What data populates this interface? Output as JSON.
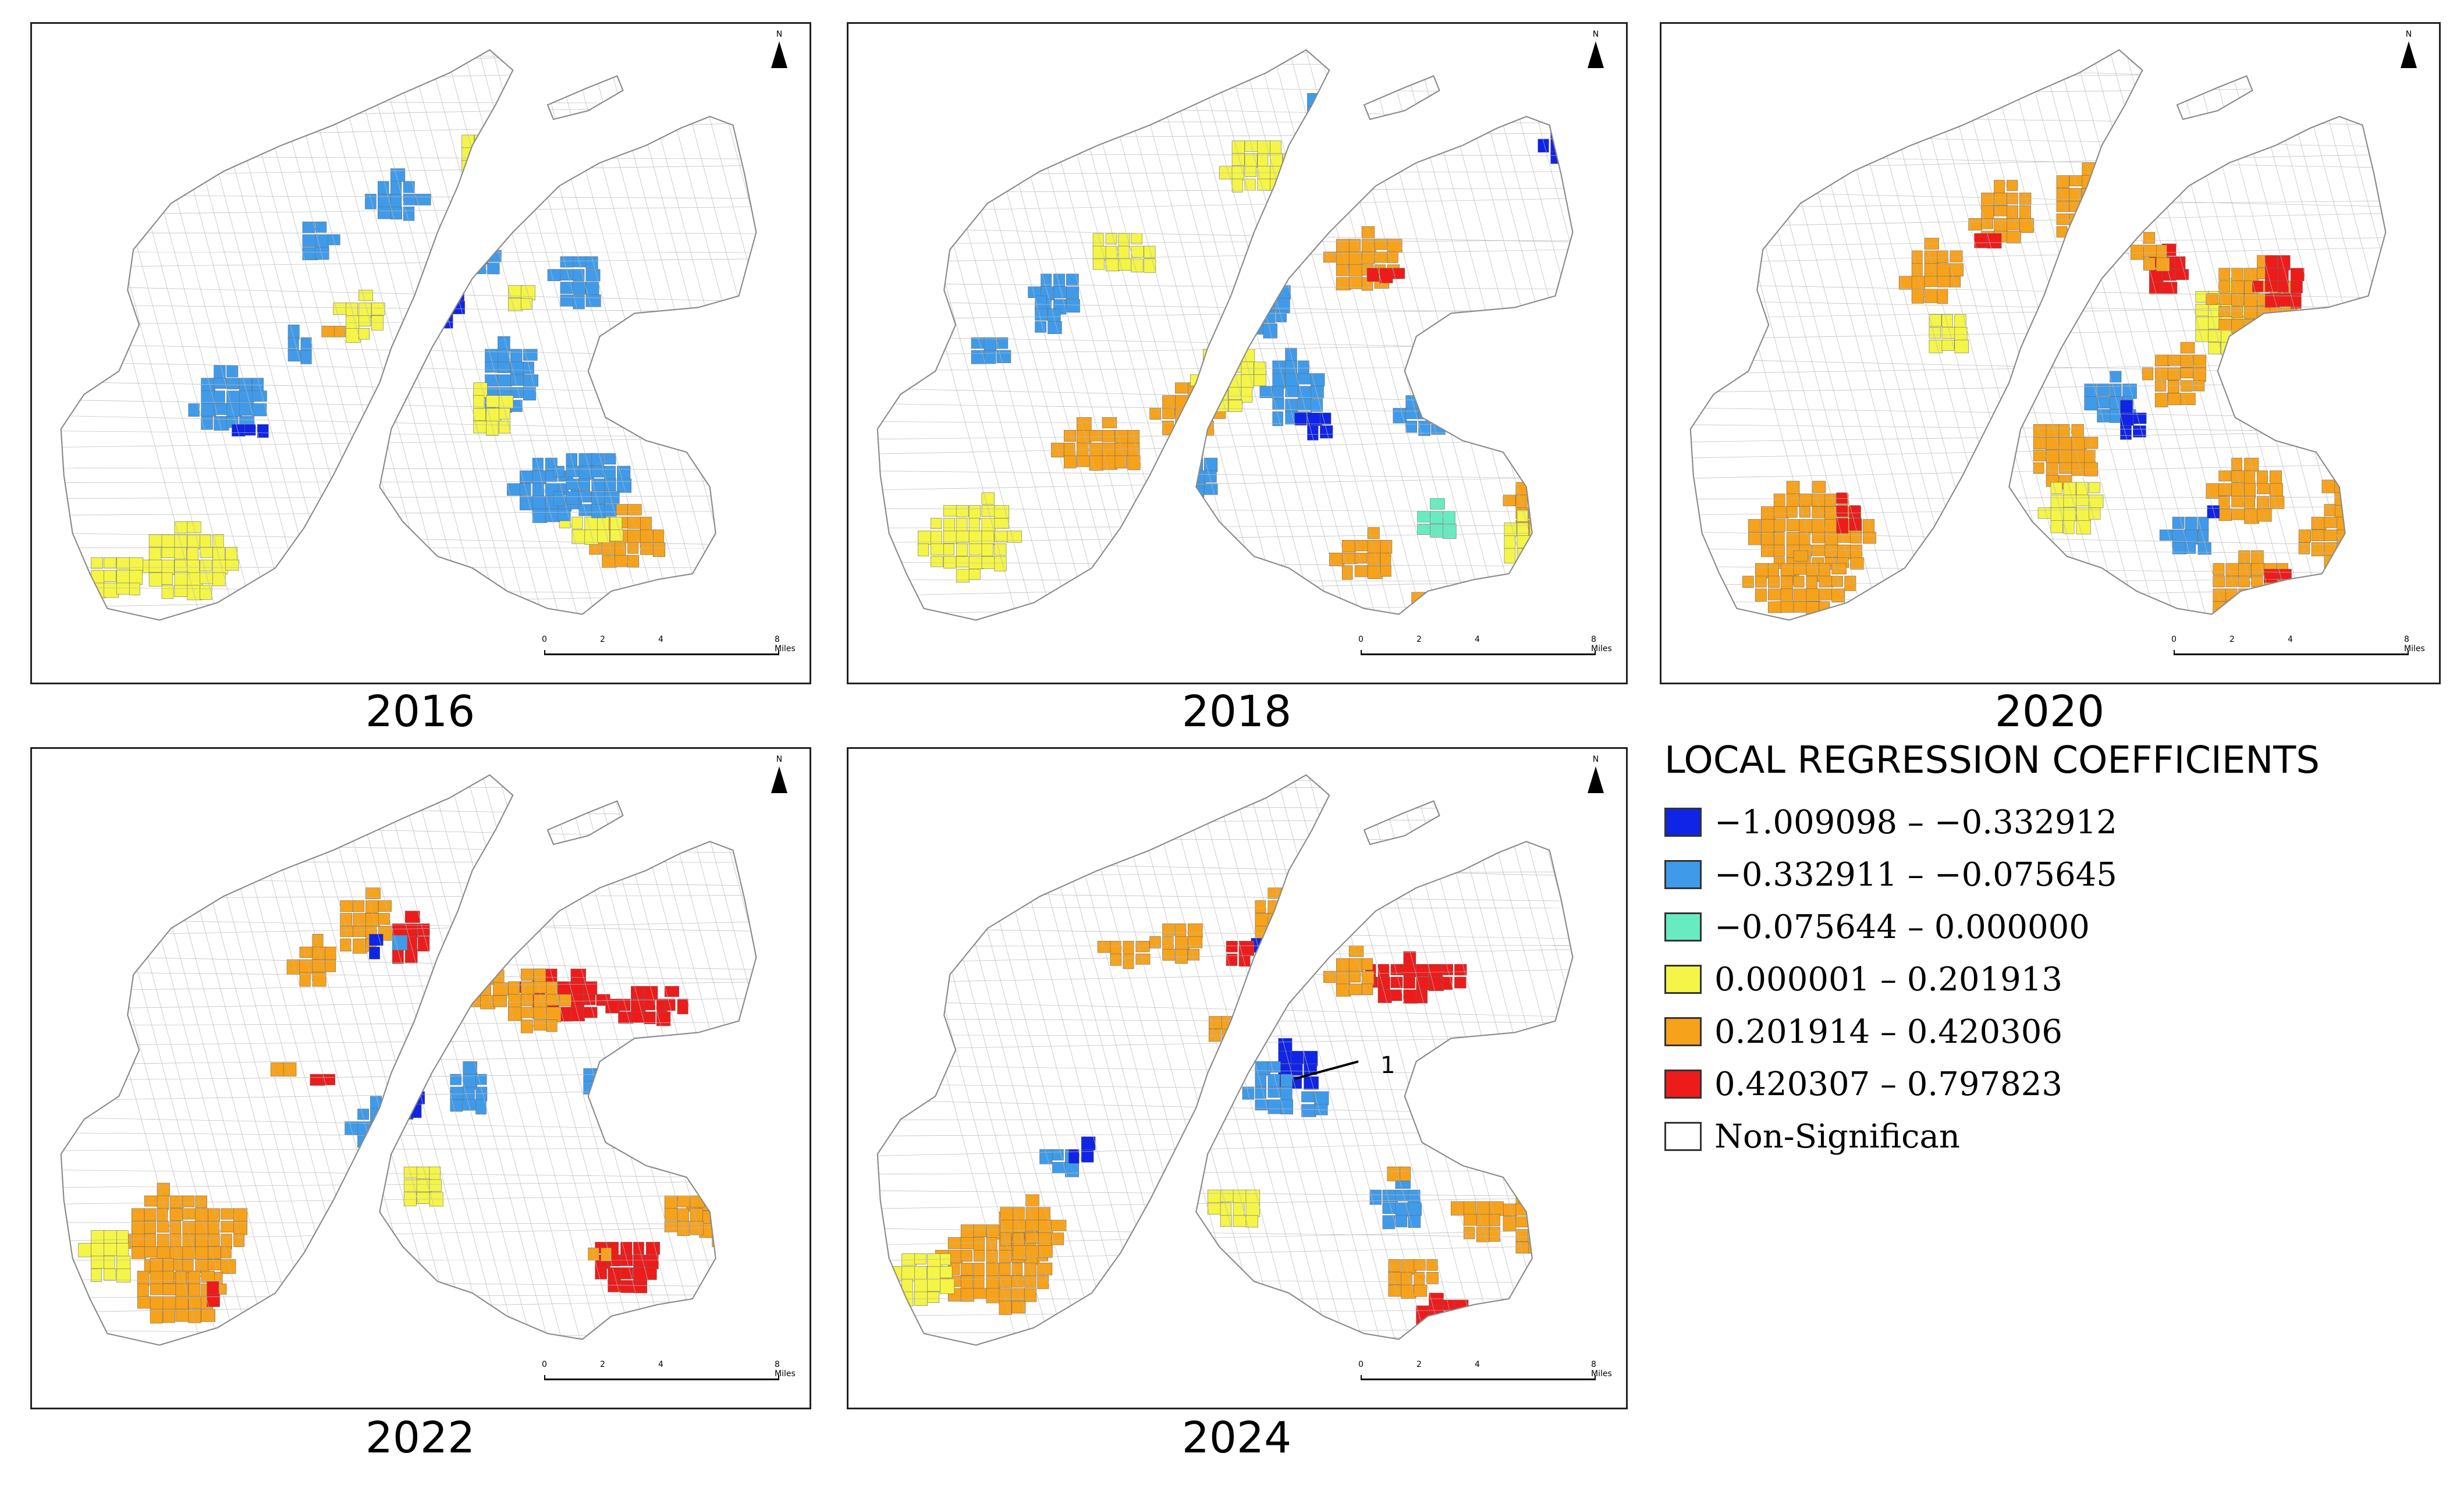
{
  "panels": [
    {
      "year": "2016"
    },
    {
      "year": "2018"
    },
    {
      "year": "2020"
    },
    {
      "year": "2022"
    },
    {
      "year": "2024"
    }
  ],
  "north_label": "N",
  "scale": {
    "ticks": [
      "0",
      "2",
      "4",
      "8 Miles"
    ]
  },
  "legend": {
    "title": "LOCAL REGRESSION COEFFICIENTS",
    "items": [
      {
        "label": "−1.009098 – −0.332912",
        "color": "#0f24e6"
      },
      {
        "label": "−0.332911 – −0.075645",
        "color": "#3f9bea"
      },
      {
        "label": "−0.075644 – 0.000000",
        "color": "#66ecc0"
      },
      {
        "label": "0.000001 – 0.201913",
        "color": "#f4f547"
      },
      {
        "label": "0.201914 – 0.420306",
        "color": "#f7a21b"
      },
      {
        "label": "0.420307 – 0.797823",
        "color": "#ee1b1b"
      },
      {
        "label": "Non-Significan",
        "color": "#ffffff"
      }
    ]
  },
  "annotation": {
    "label": "1"
  }
}
